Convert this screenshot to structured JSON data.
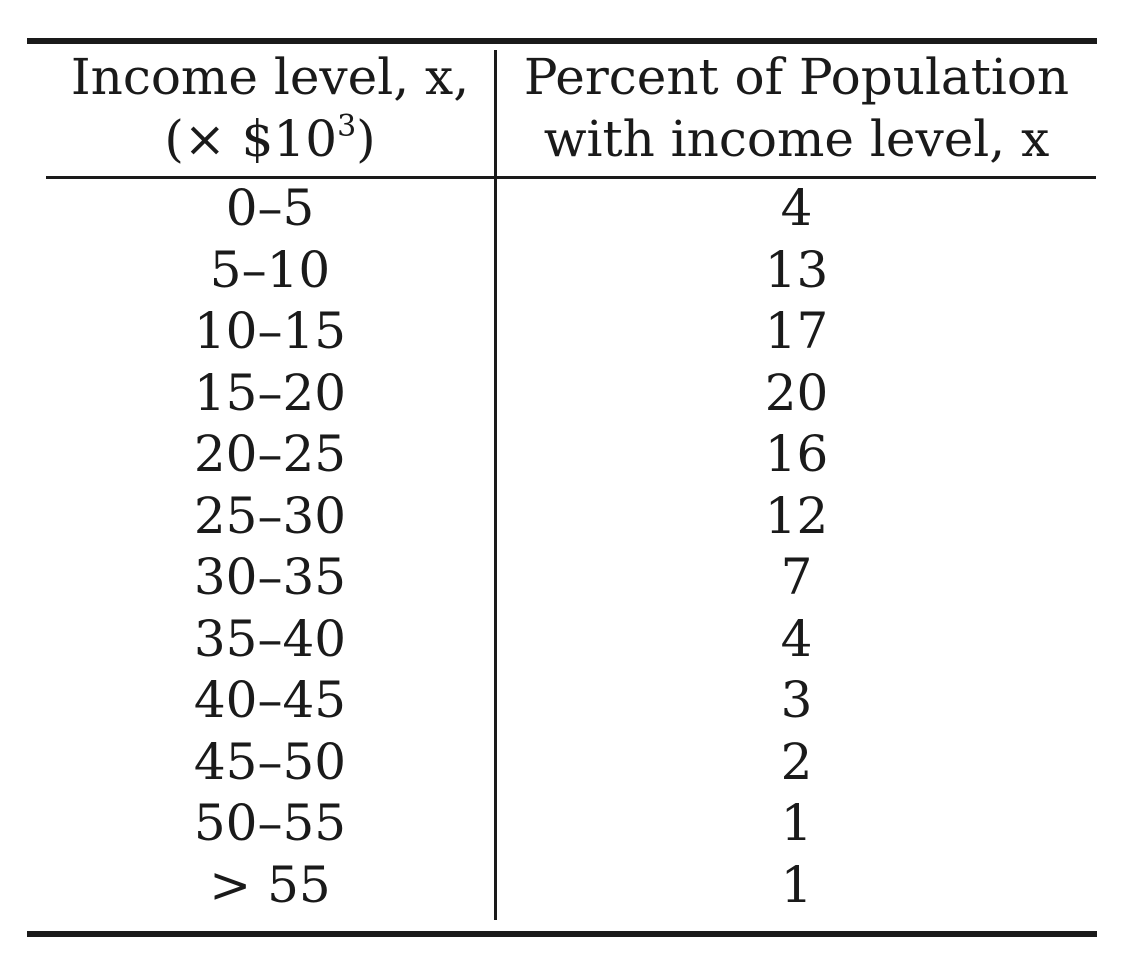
{
  "table": {
    "header": {
      "col1_line1": "Income level, x,",
      "col1_line2_pre": "(× $10",
      "col1_line2_sup": "3",
      "col1_line2_post": ")",
      "col2_line1": "Percent of Population",
      "col2_line2": "with income level, x"
    },
    "rows": [
      {
        "income": "0–5",
        "percent": "4"
      },
      {
        "income": "5–10",
        "percent": "13"
      },
      {
        "income": "10–15",
        "percent": "17"
      },
      {
        "income": "15–20",
        "percent": "20"
      },
      {
        "income": "20–25",
        "percent": "16"
      },
      {
        "income": "25–30",
        "percent": "12"
      },
      {
        "income": "30–35",
        "percent": "7"
      },
      {
        "income": "35–40",
        "percent": "4"
      },
      {
        "income": "40–45",
        "percent": "3"
      },
      {
        "income": "45–50",
        "percent": "2"
      },
      {
        "income": "50–55",
        "percent": "1"
      },
      {
        "income": "> 55",
        "percent": "1"
      }
    ]
  }
}
